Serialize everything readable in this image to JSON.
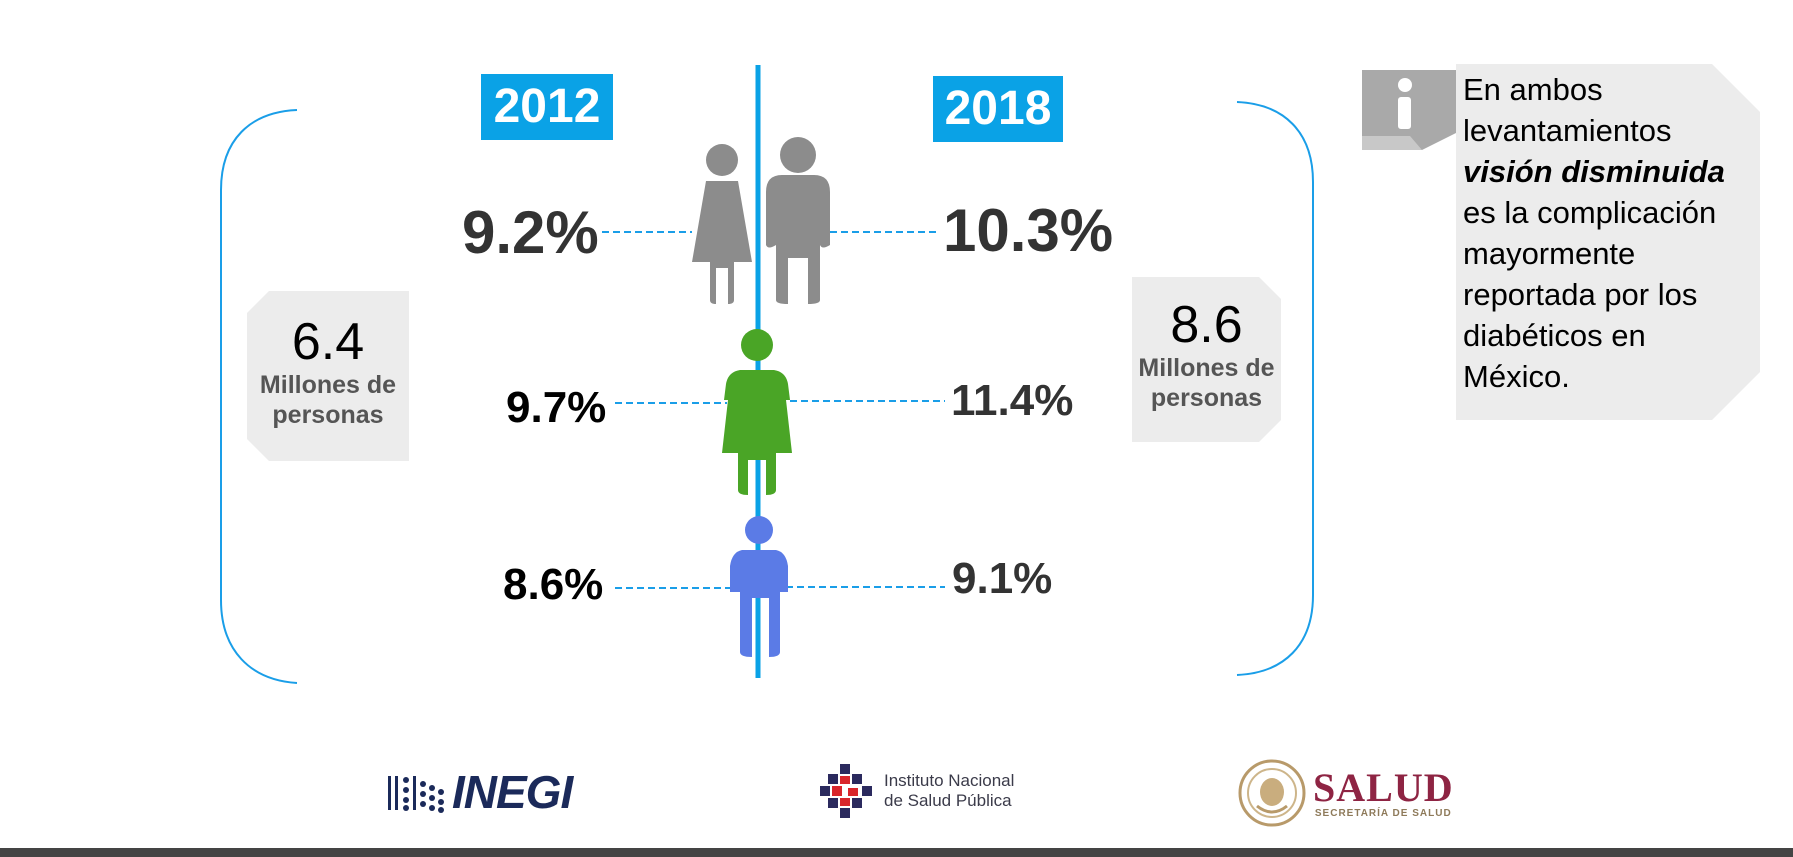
{
  "years": {
    "left": "2012",
    "right": "2018"
  },
  "rows": [
    {
      "group": "total",
      "left": "9.2%",
      "right": "10.3%",
      "color": "#8c8c8c"
    },
    {
      "group": "women",
      "left": "9.7%",
      "right": "11.4%",
      "color": "#4aa526"
    },
    {
      "group": "men",
      "left": "8.6%",
      "right": "9.1%",
      "color": "#5b7be6"
    }
  ],
  "totals": {
    "left": {
      "value": "6.4",
      "label_line1": "Millones de",
      "label_line2": "personas"
    },
    "right": {
      "value": "8.6",
      "label_line1": "Millones de",
      "label_line2": "personas"
    }
  },
  "info": {
    "line1": "En ambos",
    "line2": "levantamientos",
    "emphasis": "visión disminuida",
    "line4": "es la complicación",
    "line5": "mayormente",
    "line6": "reportada por los",
    "line7": "diabéticos en",
    "line8": "México."
  },
  "logos": {
    "inegi": "INEGI",
    "insp_line1": "Instituto Nacional",
    "insp_line2": "de Salud Pública",
    "salud": "SALUD",
    "salud_sub": "SECRETARÍA DE SALUD"
  },
  "colors": {
    "accent": "#0aa2e6",
    "bracket": "#1a9ee8",
    "dashes": "#1a9ee8"
  }
}
